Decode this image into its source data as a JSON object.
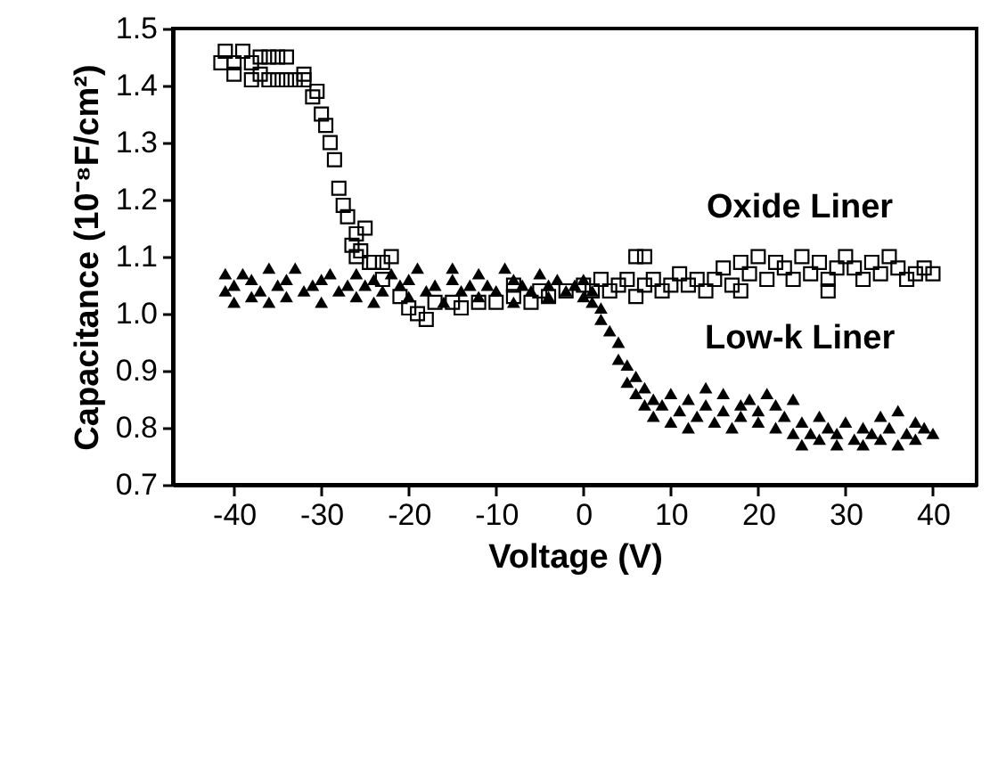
{
  "chart_data": {
    "type": "scatter",
    "xlabel": "Voltage (V)",
    "ylabel": "Capacitance (10⁻⁸F/cm²)",
    "xlim": [
      -47,
      45
    ],
    "xticks": [
      -40,
      -30,
      -20,
      -10,
      0,
      10,
      20,
      30,
      40
    ],
    "ylim": [
      0.7,
      1.5
    ],
    "yticks": [
      0.7,
      0.8,
      0.9,
      {
        "value": 1.0,
        "label": "1.0"
      },
      1.1,
      1.2,
      1.3,
      1.4,
      1.5
    ],
    "grid": false,
    "series": [
      {
        "name": "Oxide Liner",
        "color": "#000000",
        "marker": "square",
        "x": [
          -41.5,
          -41,
          -40,
          -39,
          -38,
          -37,
          -36,
          -35,
          -34,
          -40,
          -38,
          -37,
          -36,
          -35,
          -34,
          -33,
          -32,
          -32,
          -31,
          -30.5,
          -30,
          -29.5,
          -29,
          -28.5,
          -28,
          -27.5,
          -27,
          -26,
          -25,
          -26.5,
          -26,
          -25.5,
          -24.5,
          -24,
          -23,
          -22,
          -23,
          -21,
          -20,
          -19,
          -18,
          -17,
          -15,
          -12,
          -10,
          -8,
          -6,
          -4,
          -2,
          0,
          1,
          2,
          3,
          4,
          5,
          6,
          7,
          8,
          9,
          10,
          11,
          12,
          13,
          14,
          15,
          16,
          17,
          18,
          19,
          20,
          21,
          22,
          23,
          24,
          25,
          26,
          27,
          28,
          29,
          30,
          31,
          32,
          33,
          34,
          35,
          36,
          37,
          38,
          39,
          40,
          -8,
          -5,
          -14,
          6,
          7,
          18,
          28
        ],
        "values": [
          1.44,
          1.46,
          1.44,
          1.46,
          1.44,
          1.45,
          1.45,
          1.45,
          1.45,
          1.42,
          1.41,
          1.42,
          1.41,
          1.41,
          1.41,
          1.41,
          1.41,
          1.42,
          1.38,
          1.39,
          1.35,
          1.33,
          1.3,
          1.27,
          1.22,
          1.19,
          1.17,
          1.14,
          1.15,
          1.12,
          1.1,
          1.11,
          1.09,
          1.09,
          1.09,
          1.1,
          1.06,
          1.03,
          1.01,
          1.0,
          0.99,
          1.02,
          1.02,
          1.02,
          1.02,
          1.03,
          1.02,
          1.03,
          1.04,
          1.05,
          1.04,
          1.06,
          1.04,
          1.05,
          1.06,
          1.03,
          1.05,
          1.06,
          1.04,
          1.05,
          1.07,
          1.05,
          1.06,
          1.04,
          1.06,
          1.08,
          1.05,
          1.09,
          1.07,
          1.1,
          1.06,
          1.09,
          1.08,
          1.06,
          1.1,
          1.07,
          1.09,
          1.06,
          1.08,
          1.1,
          1.08,
          1.06,
          1.09,
          1.07,
          1.1,
          1.08,
          1.06,
          1.07,
          1.08,
          1.07,
          1.05,
          1.04,
          1.01,
          1.1,
          1.1,
          1.04,
          1.04
        ]
      },
      {
        "name": "Low-k Liner",
        "color": "#000000",
        "marker": "triangle",
        "x": [
          -41,
          -41,
          -40,
          -40,
          -39,
          -38,
          -38,
          -37,
          -36,
          -36,
          -35,
          -34,
          -34,
          -33,
          -32,
          -31,
          -30,
          -30,
          -29,
          -28,
          -27,
          -26,
          -26,
          -25,
          -24,
          -24,
          -23,
          -22,
          -21,
          -20,
          -20,
          -19,
          -18,
          -17,
          -16,
          -15,
          -15,
          -14,
          -13,
          -12,
          -12,
          -11,
          -10,
          -9,
          -8,
          -8,
          -7,
          -6,
          -5,
          -4,
          -4,
          -3,
          -2,
          -1,
          0,
          0,
          1,
          1,
          2,
          2,
          3,
          4,
          4,
          5,
          5,
          6,
          6,
          7,
          7,
          8,
          8,
          9,
          10,
          10,
          11,
          12,
          12,
          13,
          14,
          14,
          15,
          16,
          16,
          17,
          18,
          18,
          19,
          20,
          20,
          21,
          22,
          22,
          23,
          24,
          24,
          25,
          25,
          26,
          27,
          27,
          28,
          29,
          29,
          30,
          31,
          32,
          32,
          33,
          34,
          34,
          35,
          36,
          36,
          37,
          38,
          38,
          39,
          40
        ],
        "values": [
          1.04,
          1.07,
          1.02,
          1.05,
          1.07,
          1.03,
          1.06,
          1.04,
          1.08,
          1.02,
          1.05,
          1.03,
          1.06,
          1.08,
          1.04,
          1.05,
          1.02,
          1.06,
          1.07,
          1.04,
          1.05,
          1.03,
          1.07,
          1.05,
          1.02,
          1.06,
          1.04,
          1.07,
          1.05,
          1.03,
          1.06,
          1.08,
          1.04,
          1.05,
          1.02,
          1.06,
          1.08,
          1.04,
          1.05,
          1.03,
          1.07,
          1.05,
          1.04,
          1.08,
          1.06,
          1.02,
          1.05,
          1.04,
          1.07,
          1.03,
          1.05,
          1.06,
          1.04,
          1.05,
          1.03,
          1.06,
          1.02,
          1.04,
          1.01,
          0.99,
          0.97,
          0.95,
          0.92,
          0.91,
          0.88,
          0.86,
          0.89,
          0.84,
          0.87,
          0.82,
          0.85,
          0.84,
          0.81,
          0.86,
          0.83,
          0.8,
          0.85,
          0.82,
          0.84,
          0.87,
          0.81,
          0.83,
          0.86,
          0.8,
          0.84,
          0.82,
          0.85,
          0.81,
          0.83,
          0.86,
          0.8,
          0.84,
          0.82,
          0.79,
          0.85,
          0.77,
          0.81,
          0.79,
          0.78,
          0.82,
          0.8,
          0.77,
          0.79,
          0.81,
          0.78,
          0.8,
          0.77,
          0.79,
          0.82,
          0.78,
          0.8,
          0.77,
          0.83,
          0.79,
          0.81,
          0.78,
          0.8,
          0.79
        ]
      }
    ]
  }
}
